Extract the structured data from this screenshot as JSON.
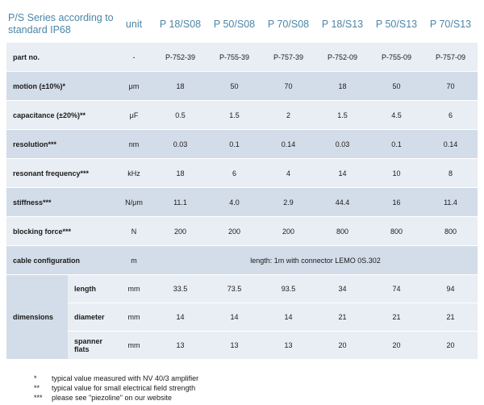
{
  "header": {
    "title": "P/S Series according to standard IP68",
    "unit": "unit",
    "models": [
      "P 18/S08",
      "P 50/S08",
      "P 70/S08",
      "P 18/S13",
      "P 50/S13",
      "P 70/S13"
    ]
  },
  "rows": [
    {
      "label": "part no.",
      "unit": "-",
      "values": [
        "P-752-39",
        "P-755-39",
        "P-757-39",
        "P-752-09",
        "P-755-09",
        "P-757-09"
      ]
    },
    {
      "label": "motion (±10%)*",
      "unit": "μm",
      "values": [
        "18",
        "50",
        "70",
        "18",
        "50",
        "70"
      ]
    },
    {
      "label": "capacitance (±20%)**",
      "unit": "μF",
      "values": [
        "0.5",
        "1.5",
        "2",
        "1.5",
        "4.5",
        "6"
      ]
    },
    {
      "label": "resolution***",
      "unit": "nm",
      "values": [
        "0.03",
        "0.1",
        "0.14",
        "0.03",
        "0.1",
        "0.14"
      ]
    },
    {
      "label": "resonant frequency***",
      "unit": "kHz",
      "values": [
        "18",
        "6",
        "4",
        "14",
        "10",
        "8"
      ]
    },
    {
      "label": "stiffness***",
      "unit": "N/μm",
      "values": [
        "11.1",
        "4.0",
        "2.9",
        "44.4",
        "16",
        "11.4"
      ]
    },
    {
      "label": "blocking force***",
      "unit": "N",
      "values": [
        "200",
        "200",
        "200",
        "800",
        "800",
        "800"
      ]
    }
  ],
  "cable": {
    "label": "cable configuration",
    "unit": "m",
    "value": "length: 1m with connector LEMO 0S.302"
  },
  "dimensions": {
    "label": "dimensions",
    "rows": [
      {
        "label": "length",
        "unit": "mm",
        "values": [
          "33.5",
          "73.5",
          "93.5",
          "34",
          "74",
          "94"
        ]
      },
      {
        "label": "diameter",
        "unit": "mm",
        "values": [
          "14",
          "14",
          "14",
          "21",
          "21",
          "21"
        ]
      },
      {
        "label": "spanner flats",
        "unit": "mm",
        "values": [
          "13",
          "13",
          "13",
          "20",
          "20",
          "20"
        ]
      }
    ]
  },
  "footnotes": [
    {
      "mark": "*",
      "text": "typical value measured with NV 40/3 amplifier"
    },
    {
      "mark": "**",
      "text": "typical value for small electrical field strength"
    },
    {
      "mark": "***",
      "text": "please see \"piezoline\" on our website"
    }
  ]
}
